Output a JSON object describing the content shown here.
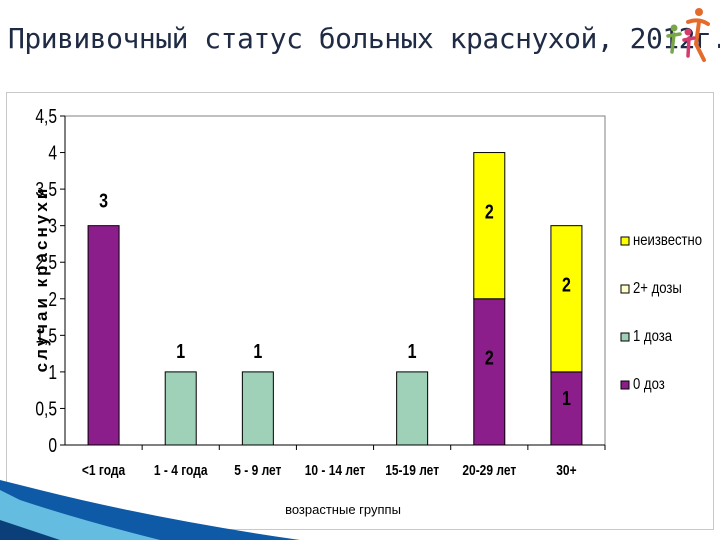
{
  "title": "Прививочный статус больных краснухой, 2012г.",
  "chart_data": {
    "type": "bar",
    "stacked": true,
    "categories": [
      "<1 года",
      "1 - 4 года",
      "5 - 9 лет",
      "10 - 14 лет",
      "15-19 лет",
      "20-29 лет",
      "30+"
    ],
    "series": [
      {
        "name": "0 доз",
        "color": "#8b1e8b",
        "values": [
          3,
          0,
          0,
          0,
          0,
          2,
          1
        ]
      },
      {
        "name": "1 доза",
        "color": "#9fd0b8",
        "values": [
          0,
          1,
          1,
          0,
          1,
          0,
          0
        ]
      },
      {
        "name": "2+ дозы",
        "color": "#ffffcc",
        "values": [
          0,
          0,
          0,
          0,
          0,
          0,
          0
        ]
      },
      {
        "name": "неизвестно",
        "color": "#ffff00",
        "values": [
          0,
          0,
          0,
          0,
          0,
          2,
          2
        ]
      }
    ],
    "data_labels": [
      {
        "category": 0,
        "series": 0,
        "text": "3"
      },
      {
        "category": 1,
        "series": 1,
        "text": "1"
      },
      {
        "category": 2,
        "series": 1,
        "text": "1"
      },
      {
        "category": 4,
        "series": 1,
        "text": "1"
      },
      {
        "category": 5,
        "series": 0,
        "text": "2"
      },
      {
        "category": 5,
        "series": 3,
        "text": "2"
      },
      {
        "category": 6,
        "series": 0,
        "text": "1"
      },
      {
        "category": 6,
        "series": 3,
        "text": "2"
      }
    ],
    "yticks": [
      "0",
      "0,5",
      "1",
      "1,5",
      "2",
      "2,5",
      "3",
      "3,5",
      "4",
      "4,5"
    ],
    "ylim": [
      0,
      4.5
    ],
    "xlabel": "возрастные группы",
    "ylabel": "случаи краснухи",
    "legend_position": "right",
    "legend_order": [
      "неизвестно",
      "2+ дозы",
      "1 доза",
      "0 доз"
    ]
  }
}
